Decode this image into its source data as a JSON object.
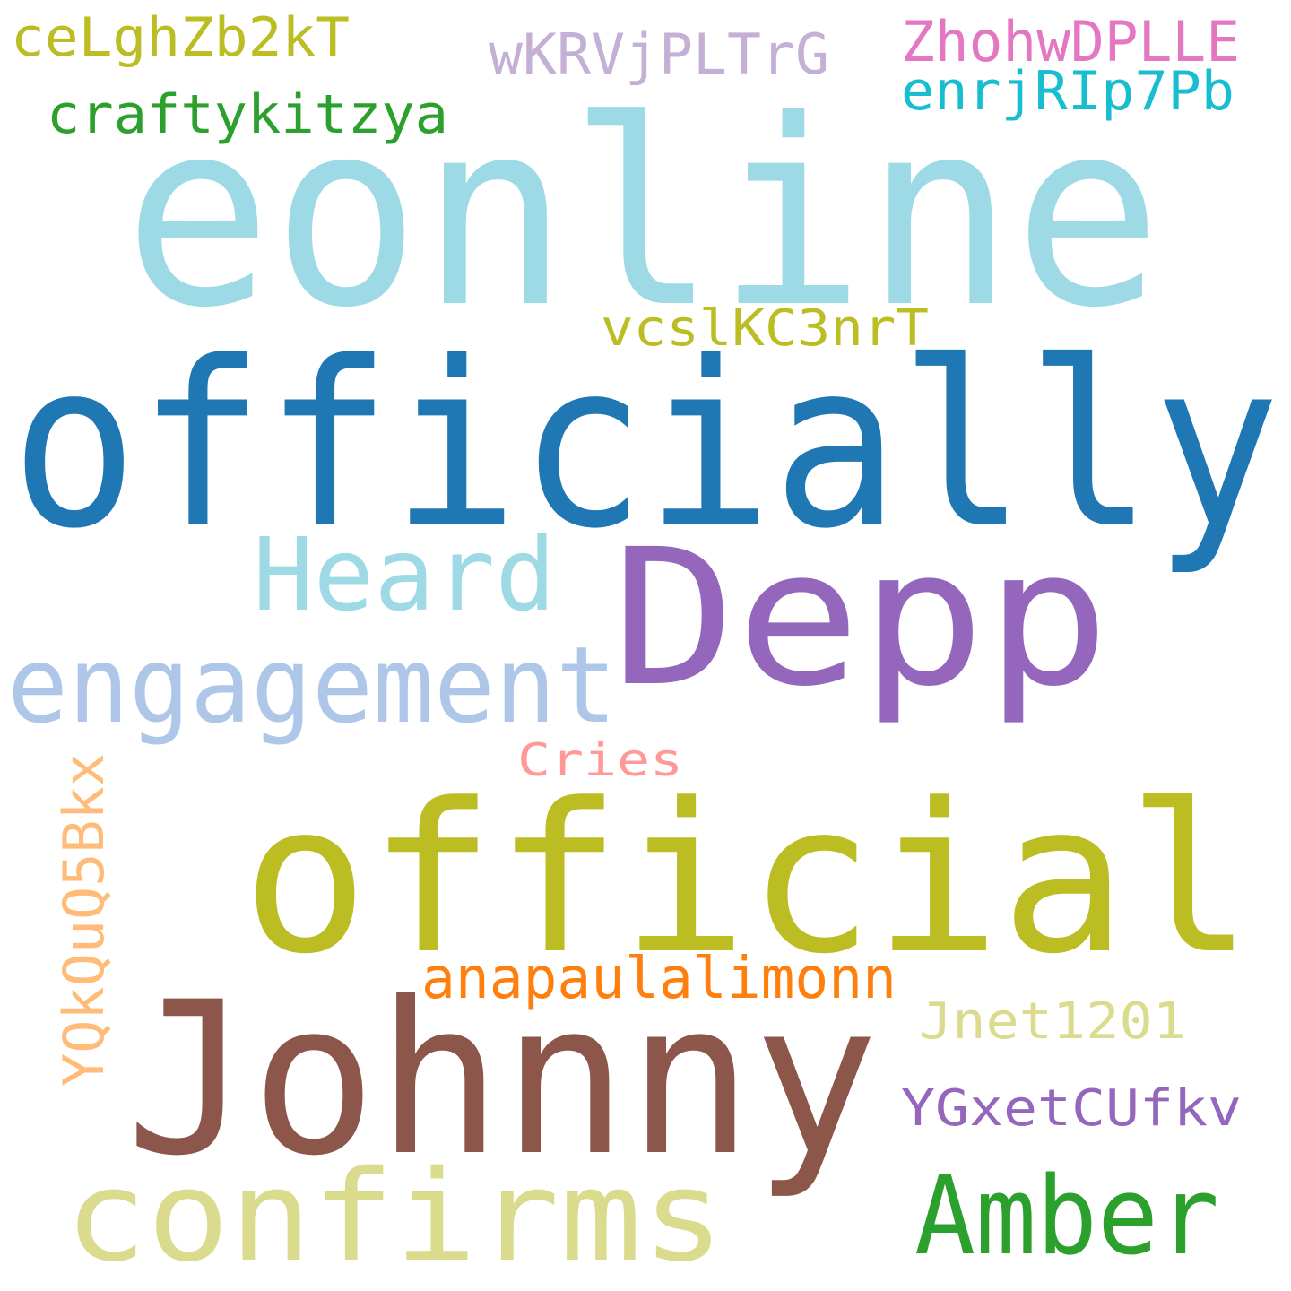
{
  "words": [
    {
      "text": "eonline",
      "color": "#9edae5"
    },
    {
      "text": "officially",
      "color": "#1f77b4"
    },
    {
      "text": "Depp",
      "color": "#9467bd"
    },
    {
      "text": "official",
      "color": "#bcbd22"
    },
    {
      "text": "Johnny",
      "color": "#8c564b"
    },
    {
      "text": "confirms",
      "color": "#dbdb8d"
    },
    {
      "text": "engagement",
      "color": "#aec7e8"
    },
    {
      "text": "Heard",
      "color": "#9edae5"
    },
    {
      "text": "Amber",
      "color": "#2ca02c"
    },
    {
      "text": "anapaulalimonn",
      "color": "#ff7f0e"
    },
    {
      "text": "YQkQuQ5Bkx",
      "color": "#ffbb78"
    },
    {
      "text": "ZhohwDPLLE",
      "color": "#e377c2"
    },
    {
      "text": "wKRVjPLTrG",
      "color": "#c5b0d5"
    },
    {
      "text": "ceLghZb2kT",
      "color": "#bcbd22"
    },
    {
      "text": "enrjRIp7Pb",
      "color": "#17becf"
    },
    {
      "text": "craftykitzya",
      "color": "#2ca02c"
    },
    {
      "text": "vcslKC3nrT",
      "color": "#bcbd22"
    },
    {
      "text": "Jnet1201",
      "color": "#dbdb8d"
    },
    {
      "text": "YGxetCUfkv",
      "color": "#9467bd"
    },
    {
      "text": "Cries",
      "color": "#ff9896"
    }
  ]
}
